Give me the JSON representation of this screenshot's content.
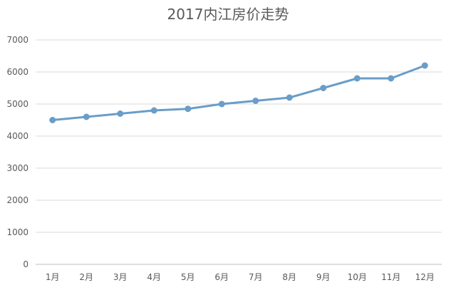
{
  "chart_data": {
    "type": "line",
    "title": "2017内江房价走势",
    "xlabel": "",
    "ylabel": "",
    "categories": [
      "1月",
      "2月",
      "3月",
      "4月",
      "5月",
      "6月",
      "7月",
      "8月",
      "9月",
      "10月",
      "11月",
      "12月"
    ],
    "series": [
      {
        "values": [
          4500,
          4600,
          4700,
          4800,
          4850,
          5000,
          5100,
          5200,
          5500,
          5800,
          5800,
          6200
        ],
        "color": "#6a9dc8",
        "marker": "circle"
      }
    ],
    "ylim": [
      0,
      7000
    ],
    "yticks": [
      0,
      1000,
      2000,
      3000,
      4000,
      5000,
      6000,
      7000
    ],
    "grid": "horizontal",
    "legend": "none"
  }
}
